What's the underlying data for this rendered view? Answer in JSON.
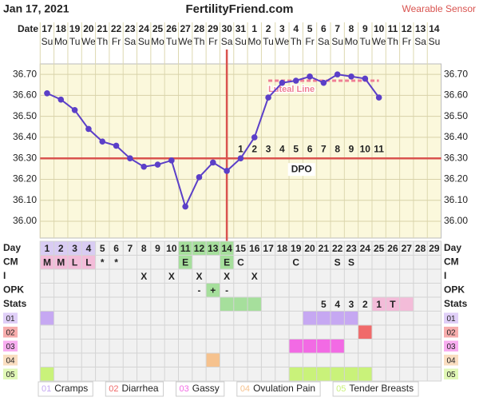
{
  "header": {
    "date": "Jan 17, 2021",
    "site": "FertilityFriend.com",
    "mode": "Wearable Sensor"
  },
  "chart_data": {
    "type": "line",
    "date_label": "Date",
    "categories": [
      "17",
      "18",
      "19",
      "20",
      "21",
      "22",
      "23",
      "24",
      "25",
      "26",
      "27",
      "28",
      "29",
      "30",
      "31",
      "1",
      "2",
      "3",
      "4",
      "5",
      "6",
      "7",
      "8",
      "9",
      "10",
      "11",
      "12",
      "13",
      "14"
    ],
    "weekdays": [
      "Su",
      "Mo",
      "Tu",
      "We",
      "Th",
      "Fr",
      "Sa",
      "Su",
      "Mo",
      "Tu",
      "We",
      "Th",
      "Fr",
      "Sa",
      "Su",
      "Mo",
      "Tu",
      "We",
      "Th",
      "Fr",
      "Sa",
      "Su",
      "Mo",
      "Tu",
      "We",
      "Th",
      "Fr",
      "Sa",
      "Su"
    ],
    "ylim": [
      35.92,
      36.75
    ],
    "yticks": [
      {
        "value": 36.0,
        "label": "36.00"
      },
      {
        "value": 36.1,
        "label": "36.10"
      },
      {
        "value": 36.2,
        "label": "36.20"
      },
      {
        "value": 36.3,
        "label": "36.30"
      },
      {
        "value": 36.4,
        "label": "36.40"
      },
      {
        "value": 36.5,
        "label": "36.50"
      },
      {
        "value": 36.6,
        "label": "36.60"
      },
      {
        "value": 36.7,
        "label": "36.70"
      }
    ],
    "grid": true,
    "series": [
      {
        "color": "#5b3fc8",
        "values": [
          36.61,
          36.58,
          36.53,
          36.44,
          36.38,
          36.36,
          36.3,
          36.26,
          36.27,
          36.29,
          36.07,
          36.21,
          36.28,
          36.24,
          36.3,
          36.4,
          36.59,
          36.66,
          36.67,
          36.69,
          36.66,
          36.7,
          36.69,
          36.68,
          36.59,
          null,
          null,
          null,
          null
        ]
      }
    ],
    "coverline": {
      "value": 36.3,
      "color": "#d9534f"
    },
    "ovulation_line": {
      "day": 14,
      "color": "#d9534f"
    },
    "luteal_line": {
      "label": "Luteal Line",
      "color": "#ef7f95",
      "values": [
        null,
        null,
        null,
        null,
        null,
        null,
        null,
        null,
        null,
        null,
        null,
        null,
        null,
        null,
        null,
        null,
        36.67,
        36.67,
        36.67,
        36.67,
        36.67,
        36.67,
        36.67,
        36.67,
        36.67,
        null,
        null,
        null,
        null
      ]
    },
    "dpo": {
      "label": "DPO",
      "values": [
        null,
        null,
        null,
        null,
        null,
        null,
        null,
        null,
        null,
        null,
        null,
        null,
        null,
        null,
        1,
        2,
        3,
        4,
        5,
        6,
        7,
        8,
        9,
        10,
        11,
        null,
        null,
        null,
        null
      ]
    }
  },
  "table": {
    "rows": [
      {
        "label": "Day",
        "cells": [
          1,
          2,
          3,
          4,
          5,
          6,
          7,
          8,
          9,
          10,
          11,
          12,
          13,
          14,
          15,
          16,
          17,
          18,
          19,
          20,
          21,
          22,
          23,
          24,
          25,
          26,
          27,
          28,
          29
        ],
        "fills": [
          {
            "color": "#d9ccf3",
            "days": [
              1,
              2,
              3,
              4
            ]
          },
          {
            "color": "#a6df9c",
            "days": [
              11,
              12,
              13,
              14
            ]
          }
        ]
      },
      {
        "label": "CM",
        "cells": [
          "M",
          "M",
          "L",
          "L",
          "*",
          "*",
          null,
          null,
          null,
          null,
          "E",
          null,
          null,
          "E",
          "C",
          null,
          null,
          null,
          "C",
          null,
          null,
          "S",
          "S",
          null,
          null,
          null,
          null,
          null,
          null
        ],
        "fills": [
          {
            "color": "#f3bcd9",
            "days": [
              1,
              2,
              3,
              4
            ]
          },
          {
            "color": "#a6df9c",
            "days": [
              11,
              14
            ]
          }
        ]
      },
      {
        "label": "I",
        "cells": [
          null,
          null,
          null,
          null,
          null,
          null,
          null,
          "X",
          null,
          "X",
          null,
          "X",
          null,
          "X",
          null,
          "X",
          null,
          null,
          null,
          null,
          null,
          null,
          null,
          null,
          null,
          null,
          null,
          null,
          null
        ],
        "fills": []
      },
      {
        "label": "OPK",
        "cells": [
          null,
          null,
          null,
          null,
          null,
          null,
          null,
          null,
          null,
          null,
          null,
          "-",
          "+",
          "-",
          null,
          null,
          null,
          null,
          null,
          null,
          null,
          null,
          null,
          null,
          null,
          null,
          null,
          null,
          null
        ],
        "fills": [
          {
            "color": "#a6df9c",
            "days": [
              13
            ]
          }
        ]
      },
      {
        "label": "Stats",
        "cells": [
          null,
          null,
          null,
          null,
          null,
          null,
          null,
          null,
          null,
          null,
          null,
          null,
          null,
          null,
          null,
          null,
          null,
          null,
          null,
          null,
          "5",
          "4",
          "3",
          "2",
          "1",
          "T",
          null,
          null,
          null
        ],
        "fills": [
          {
            "color": "#a6df9c",
            "days": [
              14,
              15,
              16
            ]
          },
          {
            "color": "#f3bcd9",
            "days": [
              25,
              26,
              27
            ]
          }
        ]
      }
    ],
    "symptoms": [
      {
        "code": "01",
        "name": "Cramps",
        "color": "#c6a8f2",
        "days": [
          1,
          20,
          21,
          22,
          23
        ]
      },
      {
        "code": "02",
        "name": "Diarrhea",
        "color": "#f06a6a",
        "days": [
          24
        ]
      },
      {
        "code": "03",
        "name": "Gassy",
        "color": "#f26ae4",
        "days": [
          19,
          20,
          21,
          22
        ]
      },
      {
        "code": "04",
        "name": "Ovulation Pain",
        "color": "#f6c28e",
        "days": [
          13
        ]
      },
      {
        "code": "05",
        "name": "Tender Breasts",
        "color": "#c9f27a",
        "days": [
          1,
          19,
          20,
          21,
          22,
          23,
          24
        ]
      }
    ]
  }
}
